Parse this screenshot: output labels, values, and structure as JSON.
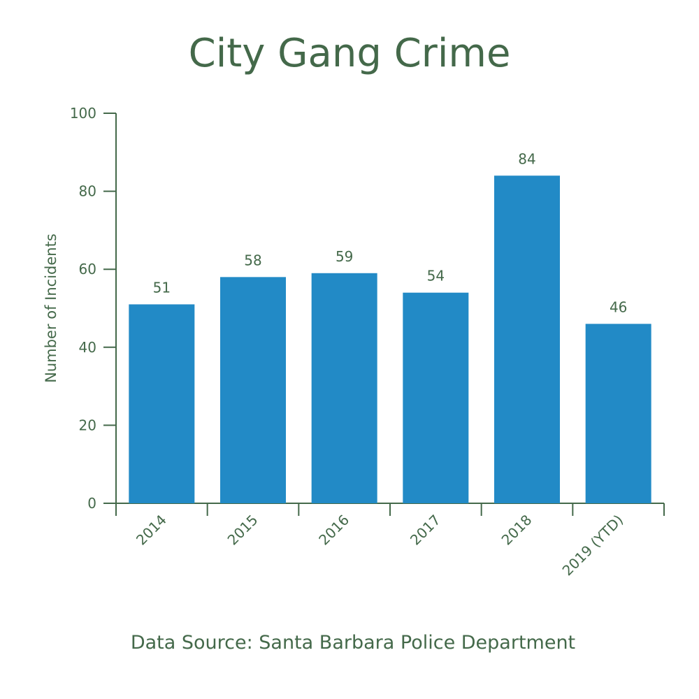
{
  "chart_data": {
    "type": "bar",
    "title": "City Gang Crime",
    "ylabel": "Number of Incidents",
    "xlabel": "",
    "categories": [
      "2014",
      "2015",
      "2016",
      "2017",
      "2018",
      "2019 (YTD)"
    ],
    "values": [
      51,
      58,
      59,
      54,
      84,
      46
    ],
    "data_labels": [
      "51",
      "58",
      "59",
      "54",
      "84",
      "46"
    ],
    "ylim": [
      0,
      100
    ],
    "yticks": [
      0,
      20,
      40,
      60,
      80,
      100
    ],
    "ytick_labels": [
      "0",
      "20",
      "40",
      "60",
      "80",
      "100"
    ],
    "grid": false,
    "bar_color": "#228ac6",
    "text_color": "#44694a",
    "source": "Data Source: Santa Barbara Police Department"
  }
}
